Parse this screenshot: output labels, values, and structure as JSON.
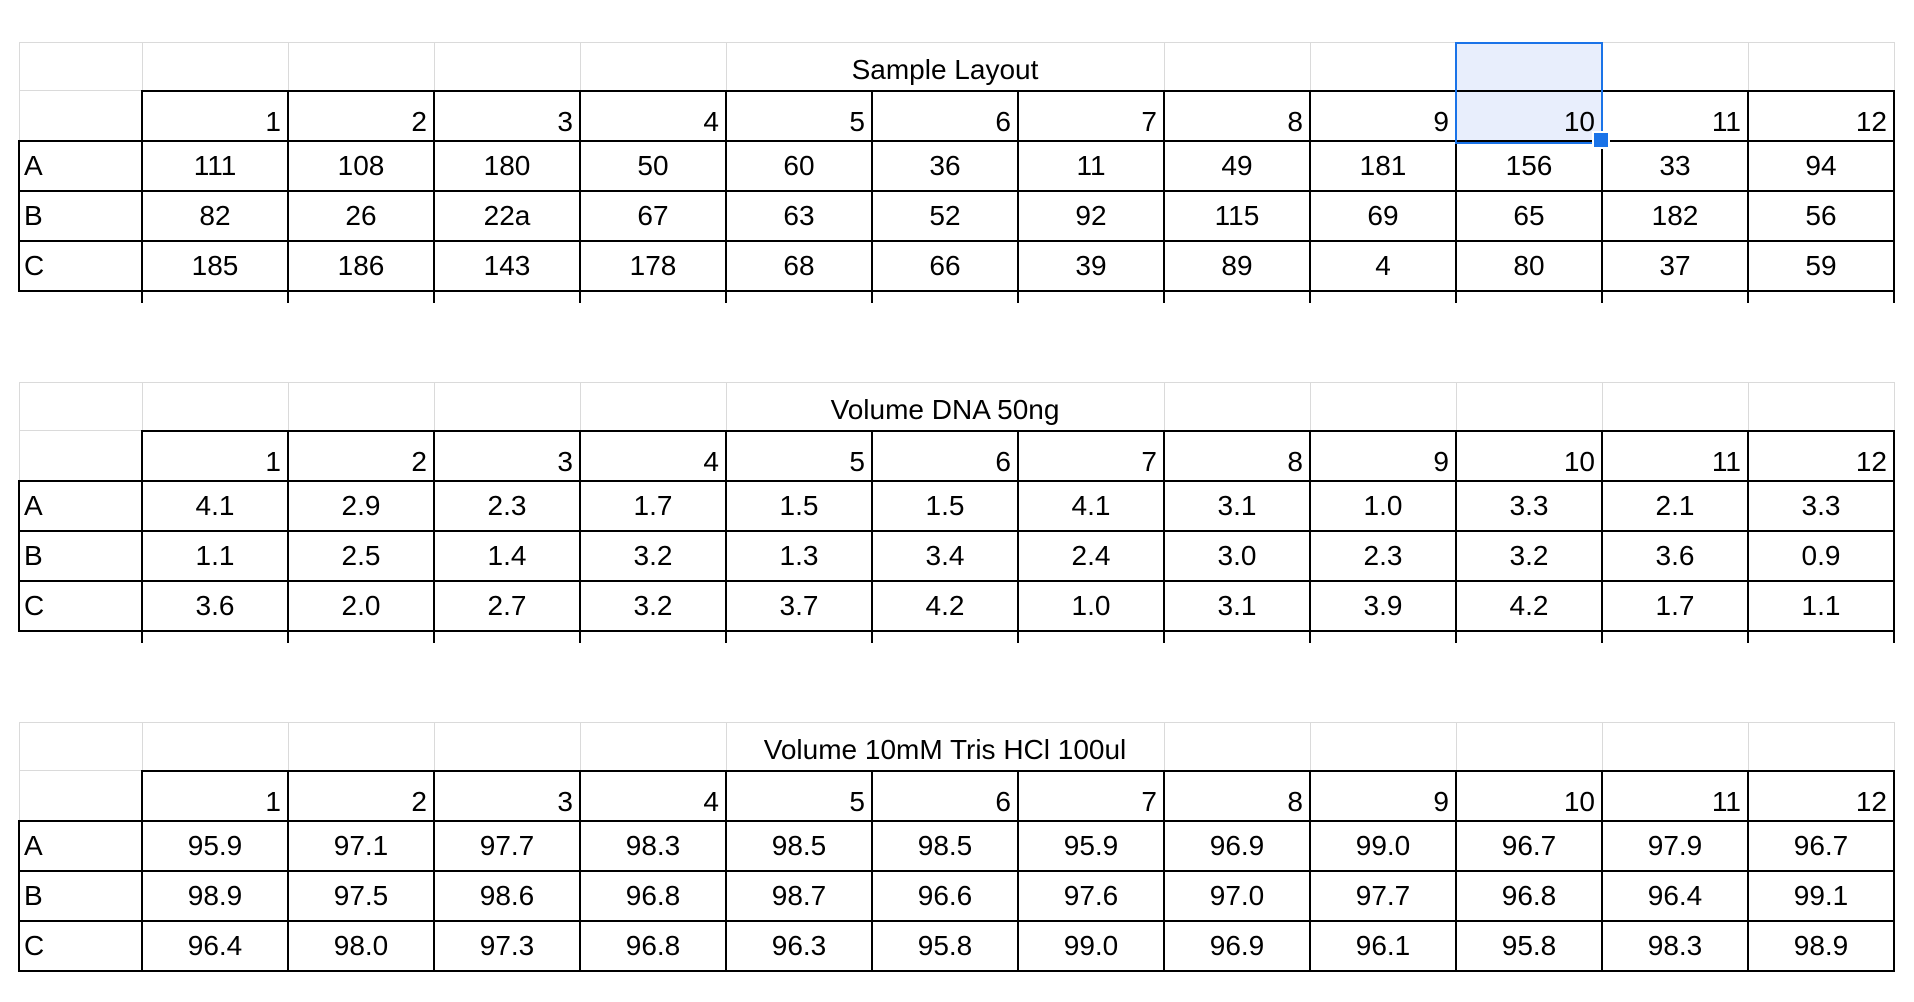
{
  "plates": [
    {
      "title": "Sample Layout",
      "columns": [
        "1",
        "2",
        "3",
        "4",
        "5",
        "6",
        "7",
        "8",
        "9",
        "10",
        "11",
        "12"
      ],
      "rows": [
        {
          "label": "A",
          "cells": [
            "111",
            "108",
            "180",
            "50",
            "60",
            "36",
            "11",
            "49",
            "181",
            "156",
            "33",
            "94"
          ]
        },
        {
          "label": "B",
          "cells": [
            "82",
            "26",
            "22a",
            "67",
            "63",
            "52",
            "92",
            "115",
            "69",
            "65",
            "182",
            "56"
          ]
        },
        {
          "label": "C",
          "cells": [
            "185",
            "186",
            "143",
            "178",
            "68",
            "66",
            "39",
            "89",
            "4",
            "80",
            "37",
            "59"
          ]
        }
      ]
    },
    {
      "title": "Volume DNA 50ng",
      "columns": [
        "1",
        "2",
        "3",
        "4",
        "5",
        "6",
        "7",
        "8",
        "9",
        "10",
        "11",
        "12"
      ],
      "rows": [
        {
          "label": "A",
          "cells": [
            "4.1",
            "2.9",
            "2.3",
            "1.7",
            "1.5",
            "1.5",
            "4.1",
            "3.1",
            "1.0",
            "3.3",
            "2.1",
            "3.3"
          ]
        },
        {
          "label": "B",
          "cells": [
            "1.1",
            "2.5",
            "1.4",
            "3.2",
            "1.3",
            "3.4",
            "2.4",
            "3.0",
            "2.3",
            "3.2",
            "3.6",
            "0.9"
          ]
        },
        {
          "label": "C",
          "cells": [
            "3.6",
            "2.0",
            "2.7",
            "3.2",
            "3.7",
            "4.2",
            "1.0",
            "3.1",
            "3.9",
            "4.2",
            "1.7",
            "1.1"
          ]
        }
      ]
    },
    {
      "title": "Volume 10mM Tris HCl 100ul",
      "columns": [
        "1",
        "2",
        "3",
        "4",
        "5",
        "6",
        "7",
        "8",
        "9",
        "10",
        "11",
        "12"
      ],
      "rows": [
        {
          "label": "A",
          "cells": [
            "95.9",
            "97.1",
            "97.7",
            "98.3",
            "98.5",
            "98.5",
            "95.9",
            "96.9",
            "99.0",
            "96.7",
            "97.9",
            "96.7"
          ]
        },
        {
          "label": "B",
          "cells": [
            "98.9",
            "97.5",
            "98.6",
            "96.8",
            "98.7",
            "96.6",
            "97.6",
            "97.0",
            "97.7",
            "96.8",
            "96.4",
            "99.1"
          ]
        },
        {
          "label": "C",
          "cells": [
            "96.4",
            "98.0",
            "97.3",
            "96.8",
            "96.3",
            "95.8",
            "99.0",
            "96.9",
            "96.1",
            "95.8",
            "98.3",
            "98.9"
          ]
        }
      ]
    }
  ],
  "selection": {
    "plate": 0,
    "column_index": 9
  },
  "colors": {
    "selection_border": "#1a73e8",
    "selection_fill": "#e8eefc",
    "gridline": "#dadada",
    "border": "#000000"
  }
}
